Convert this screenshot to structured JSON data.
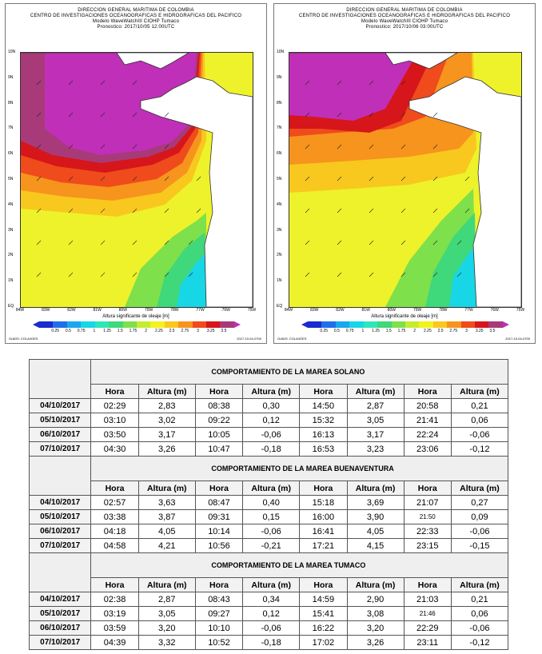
{
  "maps": [
    {
      "header": [
        "DIRECCION GENERAL MARITIMA DE COLOMBIA",
        "CENTRO DE INVESTIGACIONES OCEANOGRAFICAS E HIDROGRAFICAS DEL PACIFICO",
        "Modelo WaveWatchIII CIOHP Tumaco",
        "Pronostico: 2017/10/05 12:00UTC"
      ],
      "footer_left": "GrADS: COLA/IGES",
      "footer_right": "2017-10-04-0700"
    },
    {
      "header": [
        "DIRECCION GENERAL MARITIMA DE COLOMBIA",
        "CENTRO DE INVESTIGACIONES OCEANOGRAFICAS E HIDROGRAFICAS DEL PACIFICO",
        "Modelo WaveWatchIII CIOHP Tumaco",
        "Pronostico: 2017/10/06 03:00UTC"
      ],
      "footer_left": "GrADS: COLA/IGES",
      "footer_right": "2017-10-04-0700"
    }
  ],
  "map_axes": {
    "lat_labels": [
      "10N",
      "9N",
      "8N",
      "7N",
      "6N",
      "5N",
      "4N",
      "3N",
      "2N",
      "1N",
      "EQ"
    ],
    "lon_labels": [
      "84W",
      "83W",
      "82W",
      "81W",
      "80W",
      "79W",
      "78W",
      "77W",
      "76W",
      "75W"
    ]
  },
  "colorbar": {
    "title": "Altura significante de oleaje [m]",
    "ticks": [
      "0.25",
      "0.5",
      "0.75",
      "1",
      "1.25",
      "1.5",
      "1.75",
      "2",
      "2.25",
      "2.5",
      "2.75",
      "3",
      "3.25",
      "3.5"
    ],
    "colors": [
      "#1a2bd0",
      "#1f6fe8",
      "#1aa7f0",
      "#17d6e6",
      "#2fe6b8",
      "#3fd87a",
      "#7ee04a",
      "#c6ec2f",
      "#f2f21c",
      "#f8c81e",
      "#f7941d",
      "#ef4b1c",
      "#d6161a",
      "#a83a7a"
    ]
  },
  "tables": [
    {
      "title": "COMPORTAMIENTO DE LA MAREA SOLANO",
      "headers": [
        "Hora",
        "Altura (m)",
        "Hora",
        "Altura (m)",
        "Hora",
        "Altura (m)",
        "Hora",
        "Altura (m)"
      ],
      "rows": [
        {
          "date": "04/10/2017",
          "cells": [
            "02:29",
            "2,83",
            "08:38",
            "0,30",
            "14:50",
            "2,87",
            "20:58",
            "0,21"
          ]
        },
        {
          "date": "05/10/2017",
          "cells": [
            "03:10",
            "3,02",
            "09:22",
            "0,12",
            "15:32",
            "3,05",
            "21:41",
            "0,06"
          ]
        },
        {
          "date": "06/10/2017",
          "cells": [
            "03:50",
            "3,17",
            "10:05",
            "-0,06",
            "16:13",
            "3,17",
            "22:24",
            "-0,06"
          ]
        },
        {
          "date": "07/10/2017",
          "cells": [
            "04:30",
            "3,26",
            "10:47",
            "-0,18",
            "16:53",
            "3,23",
            "23:06",
            "-0,12"
          ]
        }
      ]
    },
    {
      "title": "COMPORTAMIENTO DE LA MAREA BUENAVENTURA",
      "headers": [
        "Hora",
        "Altura (m)",
        "Hora",
        "Altura (m)",
        "Hora",
        "Altura (m)",
        "Hora",
        "Altura (m)"
      ],
      "rows": [
        {
          "date": "04/10/2017",
          "cells": [
            "02:57",
            "3,63",
            "08:47",
            "0,40",
            "15:18",
            "3,69",
            "21:07",
            "0,27"
          ]
        },
        {
          "date": "05/10/2017",
          "cells": [
            "03:38",
            "3,87",
            "09:31",
            "0,15",
            "16:00",
            "3,90",
            "21:50",
            "0,09"
          ]
        },
        {
          "date": "06/10/2017",
          "cells": [
            "04:18",
            "4,05",
            "10:14",
            "-0,06",
            "16:41",
            "4,05",
            "22:33",
            "-0,06"
          ]
        },
        {
          "date": "07/10/2017",
          "cells": [
            "04:58",
            "4,21",
            "10:56",
            "-0,21",
            "17:21",
            "4,15",
            "23:15",
            "-0,15"
          ]
        }
      ]
    },
    {
      "title": "COMPORTAMIENTO DE LA MAREA TUMACO",
      "headers": [
        "Hora",
        "Altura (m)",
        "Hora",
        "Altura (m)",
        "Hora",
        "Altura (m)",
        "Hora",
        "Altura (m)"
      ],
      "rows": [
        {
          "date": "04/10/2017",
          "cells": [
            "02:38",
            "2,87",
            "08:43",
            "0,34",
            "14:59",
            "2,90",
            "21:03",
            "0,21"
          ]
        },
        {
          "date": "05/10/2017",
          "cells": [
            "03:19",
            "3,05",
            "09:27",
            "0,12",
            "15:41",
            "3,08",
            "21:46",
            "0,06"
          ]
        },
        {
          "date": "06/10/2017",
          "cells": [
            "03:59",
            "3,20",
            "10:10",
            "-0,06",
            "16:22",
            "3,20",
            "22:29",
            "-0,06"
          ]
        },
        {
          "date": "07/10/2017",
          "cells": [
            "04:39",
            "3,32",
            "10:52",
            "-0,18",
            "17:02",
            "3,26",
            "23:11",
            "-0,12"
          ]
        }
      ]
    }
  ]
}
